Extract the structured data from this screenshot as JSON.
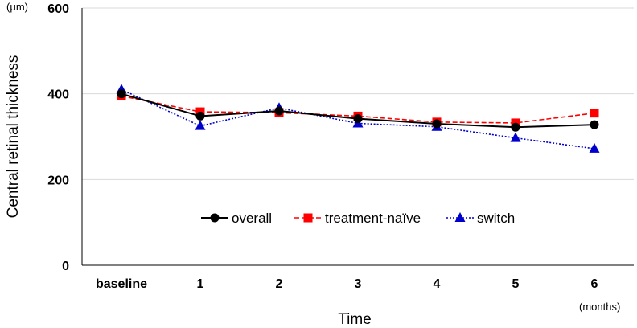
{
  "chart_data": {
    "type": "line",
    "categories": [
      "baseline",
      "1",
      "2",
      "3",
      "4",
      "5",
      "6"
    ],
    "xlabel": "Time",
    "ylabel": "Central retinal thickness",
    "y_unit": "(μm)",
    "x_unit": "(months)",
    "ylim": [
      0,
      600
    ],
    "yticks": [
      "0",
      "200",
      "400",
      "600"
    ],
    "grid": true,
    "legend_position": "bottom-center",
    "series": [
      {
        "name": "overall",
        "values": [
          400,
          348,
          360,
          342,
          330,
          322,
          328
        ],
        "color": "#000000",
        "line_style": "solid",
        "marker": "circle"
      },
      {
        "name": "treatment-naïve",
        "values": [
          395,
          358,
          356,
          348,
          334,
          332,
          355
        ],
        "color": "#ff0000",
        "line_style": "dashed",
        "marker": "square"
      },
      {
        "name": "switch",
        "values": [
          410,
          325,
          367,
          331,
          323,
          297,
          272
        ],
        "color": "#0000cc",
        "line_style": "dotted",
        "marker": "triangle"
      }
    ]
  }
}
